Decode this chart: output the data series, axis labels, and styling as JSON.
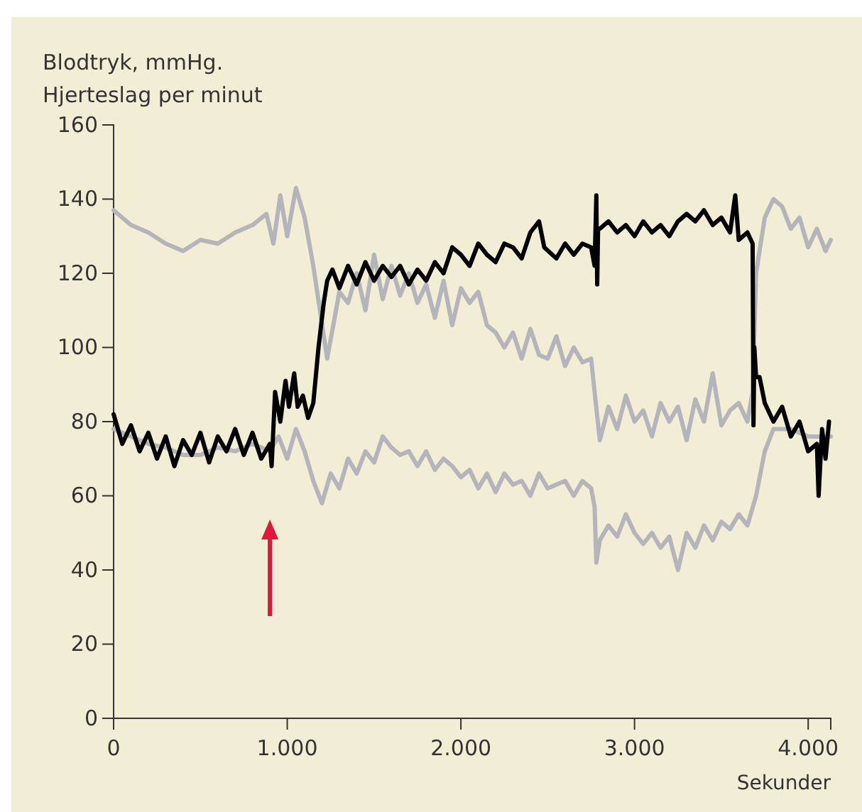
{
  "chart_data": {
    "type": "line",
    "ylabel": "Blodtryk, mmHg.\nHjerteslag per minut",
    "xlabel": "Sekunder",
    "xlim": [
      0,
      4130
    ],
    "xticks": [
      0,
      {
        "value": 1000,
        "label": "1.000"
      },
      {
        "value": 2000,
        "label": "2.000"
      },
      {
        "value": 3000,
        "label": "3.000"
      },
      {
        "value": 4000,
        "label": "4.000"
      }
    ],
    "ylim": [
      0,
      160
    ],
    "yticks": [
      0,
      20,
      40,
      60,
      80,
      100,
      120,
      140,
      160
    ],
    "line_style": "solid",
    "series": [
      {
        "color": "#b3b5bb",
        "x": [
          0,
          100,
          200,
          300,
          400,
          500,
          600,
          700,
          800,
          880,
          920,
          960,
          1000,
          1050,
          1100,
          1150,
          1230,
          1300,
          1350,
          1400,
          1450,
          1500,
          1550,
          1600,
          1650,
          1700,
          1750,
          1800,
          1850,
          1900,
          1950,
          2000,
          2050,
          2100,
          2150,
          2200,
          2250,
          2300,
          2350,
          2400,
          2450,
          2500,
          2550,
          2600,
          2650,
          2700,
          2750,
          2770,
          2800,
          2850,
          2900,
          2950,
          3000,
          3050,
          3100,
          3150,
          3200,
          3250,
          3300,
          3350,
          3400,
          3450,
          3500,
          3550,
          3600,
          3650,
          3680,
          3700,
          3750,
          3800,
          3850,
          3900,
          3950,
          4000,
          4050,
          4100,
          4130
        ],
        "values": [
          137,
          133,
          131,
          128,
          126,
          129,
          128,
          131,
          133,
          136,
          128,
          141,
          130,
          143,
          135,
          122,
          97,
          115,
          112,
          120,
          110,
          125,
          113,
          122,
          114,
          120,
          112,
          117,
          108,
          118,
          106,
          116,
          112,
          115,
          106,
          104,
          100,
          104,
          97,
          105,
          98,
          97,
          103,
          95,
          100,
          96,
          97,
          88,
          75,
          84,
          78,
          87,
          80,
          83,
          76,
          85,
          80,
          84,
          75,
          86,
          80,
          93,
          79,
          83,
          85,
          80,
          88,
          120,
          135,
          140,
          138,
          132,
          135,
          127,
          132,
          126,
          129
        ]
      },
      {
        "color": "#b3b5bb",
        "x": [
          0,
          100,
          200,
          300,
          400,
          500,
          600,
          700,
          800,
          900,
          950,
          1000,
          1050,
          1100,
          1150,
          1200,
          1250,
          1300,
          1350,
          1400,
          1450,
          1500,
          1550,
          1600,
          1650,
          1700,
          1750,
          1800,
          1850,
          1900,
          1950,
          2000,
          2050,
          2100,
          2150,
          2200,
          2250,
          2300,
          2350,
          2400,
          2450,
          2500,
          2550,
          2600,
          2650,
          2700,
          2750,
          2770,
          2780,
          2800,
          2850,
          2900,
          2950,
          3000,
          3050,
          3100,
          3150,
          3200,
          3250,
          3300,
          3350,
          3400,
          3450,
          3500,
          3550,
          3600,
          3650,
          3700,
          3750,
          3800,
          3900,
          4000,
          4130
        ],
        "values": [
          78,
          76,
          74,
          73,
          71,
          71,
          73,
          72,
          74,
          72,
          76,
          70,
          78,
          72,
          64,
          58,
          66,
          62,
          70,
          66,
          72,
          69,
          76,
          73,
          71,
          72,
          68,
          72,
          67,
          70,
          68,
          65,
          67,
          62,
          66,
          61,
          66,
          63,
          64,
          60,
          66,
          62,
          63,
          64,
          60,
          64,
          62,
          57,
          42,
          48,
          52,
          49,
          55,
          50,
          47,
          50,
          46,
          49,
          40,
          50,
          46,
          52,
          48,
          53,
          51,
          55,
          52,
          60,
          72,
          78,
          78,
          76,
          76
        ]
      },
      {
        "color": "#000000",
        "x": [
          0,
          50,
          100,
          150,
          200,
          250,
          300,
          350,
          400,
          450,
          500,
          550,
          600,
          650,
          700,
          750,
          800,
          850,
          900,
          910,
          930,
          960,
          990,
          1010,
          1040,
          1060,
          1090,
          1120,
          1150,
          1180,
          1210,
          1230,
          1260,
          1300,
          1350,
          1400,
          1450,
          1500,
          1550,
          1600,
          1650,
          1700,
          1750,
          1800,
          1850,
          1900,
          1950,
          2000,
          2050,
          2100,
          2150,
          2200,
          2250,
          2300,
          2350,
          2400,
          2450,
          2480,
          2550,
          2600,
          2650,
          2700,
          2750,
          2770,
          2780,
          2785,
          2790,
          2800,
          2850,
          2900,
          2950,
          3000,
          3050,
          3100,
          3150,
          3200,
          3250,
          3300,
          3350,
          3400,
          3450,
          3500,
          3550,
          3580,
          3600,
          3650,
          3680,
          3685,
          3690,
          3700,
          3720,
          3750,
          3800,
          3850,
          3900,
          3950,
          4000,
          4050,
          4060,
          4080,
          4100,
          4120
        ],
        "values": [
          82,
          74,
          79,
          72,
          77,
          70,
          76,
          68,
          75,
          71,
          77,
          69,
          76,
          72,
          78,
          71,
          77,
          70,
          74,
          68,
          88,
          80,
          91,
          84,
          93,
          84,
          87,
          81,
          85,
          100,
          112,
          118,
          121,
          116,
          122,
          117,
          123,
          118,
          122,
          119,
          122,
          117,
          121,
          118,
          123,
          120,
          127,
          125,
          122,
          128,
          125,
          123,
          128,
          127,
          124,
          131,
          134,
          127,
          124,
          128,
          125,
          128,
          127,
          122,
          141,
          117,
          132,
          132,
          134,
          131,
          133,
          130,
          134,
          131,
          133,
          130,
          134,
          136,
          134,
          137,
          133,
          135,
          131,
          141,
          129,
          131,
          128,
          79,
          100,
          92,
          92,
          85,
          80,
          84,
          76,
          80,
          72,
          74,
          60,
          78,
          70,
          80
        ]
      }
    ]
  }
}
